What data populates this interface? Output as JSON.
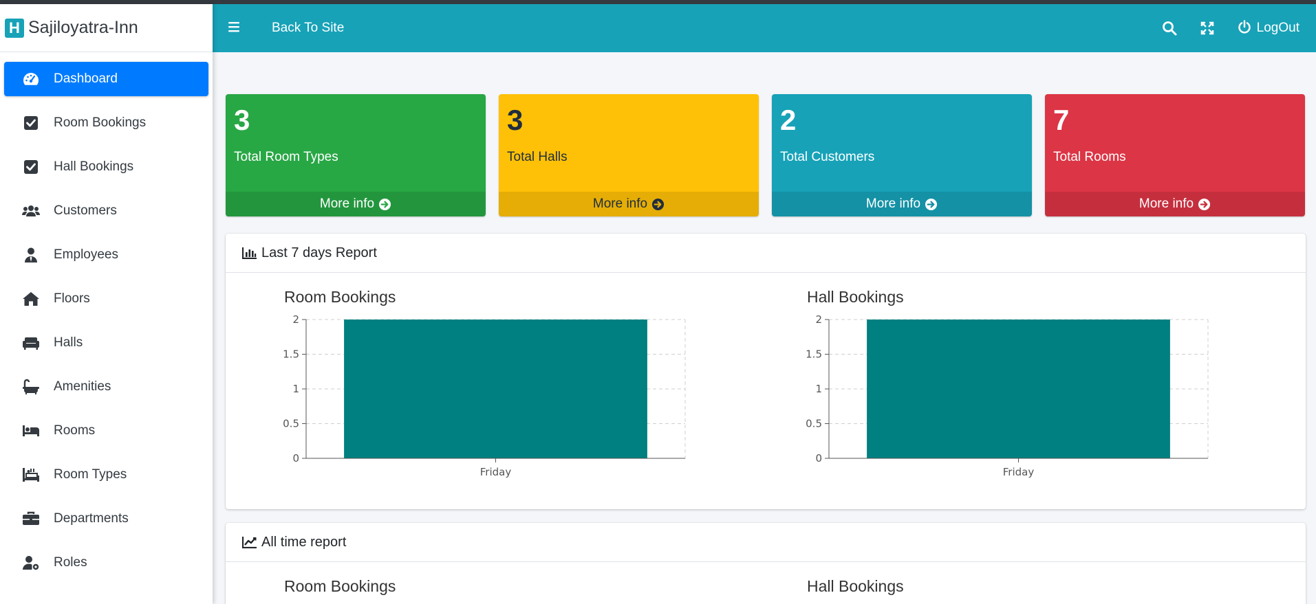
{
  "brand": {
    "logo_letter": "H",
    "name": "Sajiloyatra-Inn"
  },
  "header": {
    "menu_icon": "hamburger-icon",
    "back_link": "Back To Site",
    "search_icon": "search-icon",
    "fullscreen_icon": "expand-icon",
    "logout_label": "LogOut"
  },
  "sidebar": {
    "items": [
      {
        "label": "Dashboard",
        "icon": "tachometer-icon",
        "active": true
      },
      {
        "label": "Room Bookings",
        "icon": "check-square-icon"
      },
      {
        "label": "Hall Bookings",
        "icon": "check-square-icon"
      },
      {
        "label": "Customers",
        "icon": "users-icon"
      },
      {
        "label": "Employees",
        "icon": "user-tie-icon"
      },
      {
        "label": "Floors",
        "icon": "home-icon"
      },
      {
        "label": "Halls",
        "icon": "couch-icon"
      },
      {
        "label": "Amenities",
        "icon": "bath-icon"
      },
      {
        "label": "Rooms",
        "icon": "bed-icon"
      },
      {
        "label": "Room Types",
        "icon": "hotel-icon"
      },
      {
        "label": "Departments",
        "icon": "briefcase-icon"
      },
      {
        "label": "Roles",
        "icon": "user-cog-icon"
      }
    ]
  },
  "stats": [
    {
      "value": "3",
      "label": "Total Room Types",
      "link": "More info",
      "color": "#28a745"
    },
    {
      "value": "3",
      "label": "Total Halls",
      "link": "More info",
      "color": "#ffc107"
    },
    {
      "value": "2",
      "label": "Total Customers",
      "link": "More info",
      "color": "#17a2b8"
    },
    {
      "value": "7",
      "label": "Total Rooms",
      "link": "More info",
      "color": "#dc3545"
    }
  ],
  "report7": {
    "title": "Last 7 days Report"
  },
  "report_all": {
    "title": "All time report",
    "room_chart_title": "Room Bookings",
    "hall_chart_title": "Hall Bookings"
  },
  "chart_data": [
    {
      "type": "bar",
      "title": "Room Bookings",
      "categories": [
        "Friday"
      ],
      "values": [
        2
      ],
      "ylim": [
        0,
        2
      ],
      "yticks": [
        "0",
        "0.5",
        "1",
        "1.5",
        "2"
      ],
      "grid": true,
      "color": "#008080"
    },
    {
      "type": "bar",
      "title": "Hall Bookings",
      "categories": [
        "Friday"
      ],
      "values": [
        2
      ],
      "ylim": [
        0,
        2
      ],
      "yticks": [
        "0",
        "0.5",
        "1",
        "1.5",
        "2"
      ],
      "grid": true,
      "color": "#008080"
    }
  ]
}
